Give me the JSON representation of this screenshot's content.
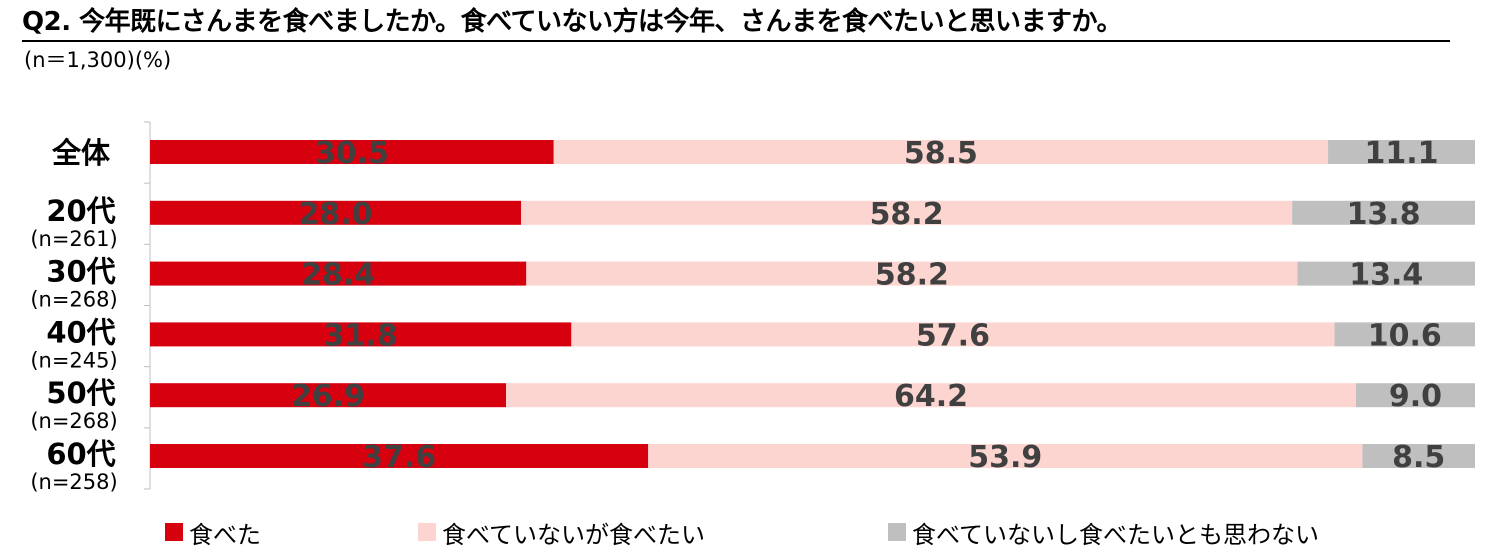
{
  "title": "Q2. 今年既にさんまを食べましたか。食べていない方は今年、さんまを食べたいと思いますか。",
  "subtitle": "(n＝1,300)(%)",
  "chart_data": {
    "type": "bar",
    "orientation": "horizontal",
    "stacked": true,
    "percent_stacked": true,
    "categories": [
      {
        "label": "全体",
        "sublabel": ""
      },
      {
        "label": "20代",
        "sublabel": "(n=261)"
      },
      {
        "label": "30代",
        "sublabel": "(n=268)"
      },
      {
        "label": "40代",
        "sublabel": "(n=245)"
      },
      {
        "label": "50代",
        "sublabel": "(n=268)"
      },
      {
        "label": "60代",
        "sublabel": "(n=258)"
      }
    ],
    "series": [
      {
        "name": "食べた",
        "color": "#d7000f",
        "values": [
          "30.5",
          "28.0",
          "28.4",
          "31.8",
          "26.9",
          "37.6"
        ]
      },
      {
        "name": "食べていないが食べたい",
        "color": "#fdd5d0",
        "values": [
          "58.5",
          "58.2",
          "58.2",
          "57.6",
          "64.2",
          "53.9"
        ]
      },
      {
        "name": "食べていないし食べたいとも思わない",
        "color": "#bfbfbf",
        "values": [
          "11.1",
          "13.8",
          "13.4",
          "10.6",
          "9.0",
          "8.5"
        ]
      }
    ],
    "data_label_color": "#404040",
    "axis_color": "#bfbfbf",
    "legend_position": "bottom",
    "grid": false
  }
}
